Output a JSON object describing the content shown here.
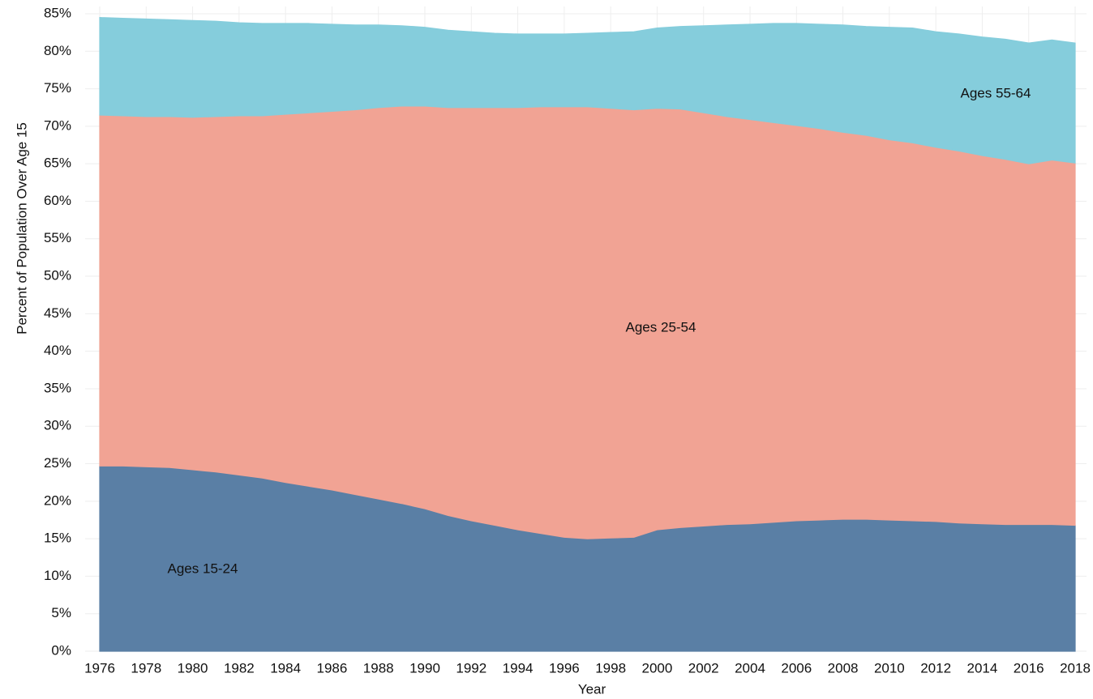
{
  "chart_data": {
    "type": "stacked-area",
    "x_label": "Year",
    "y_label": "Percent of Population Over Age 15",
    "x": [
      1976,
      1977,
      1978,
      1979,
      1980,
      1981,
      1982,
      1983,
      1984,
      1985,
      1986,
      1987,
      1988,
      1989,
      1990,
      1991,
      1992,
      1993,
      1994,
      1995,
      1996,
      1997,
      1998,
      1999,
      2000,
      2001,
      2002,
      2003,
      2004,
      2005,
      2006,
      2007,
      2008,
      2009,
      2010,
      2011,
      2012,
      2013,
      2014,
      2015,
      2016,
      2017,
      2018
    ],
    "series": [
      {
        "name": "Ages 15-24",
        "color": "#5a7fa5",
        "values": [
          24.7,
          24.7,
          24.6,
          24.5,
          24.2,
          23.9,
          23.5,
          23.1,
          22.5,
          22.0,
          21.5,
          20.9,
          20.3,
          19.7,
          19.0,
          18.1,
          17.4,
          16.8,
          16.2,
          15.7,
          15.2,
          15.0,
          15.1,
          15.2,
          16.2,
          16.5,
          16.7,
          16.9,
          17.0,
          17.2,
          17.4,
          17.5,
          17.6,
          17.6,
          17.5,
          17.4,
          17.3,
          17.1,
          17.0,
          16.9,
          16.9,
          16.9,
          16.8
        ]
      },
      {
        "name": "Ages 25-54",
        "color": "#f1a394",
        "values": [
          46.8,
          46.7,
          46.7,
          46.8,
          47.0,
          47.4,
          47.9,
          48.3,
          49.1,
          49.8,
          50.5,
          51.3,
          52.2,
          53.0,
          53.7,
          54.4,
          55.1,
          55.7,
          56.3,
          56.9,
          57.4,
          57.6,
          57.3,
          57.0,
          56.2,
          55.8,
          55.1,
          54.4,
          53.9,
          53.3,
          52.7,
          52.2,
          51.6,
          51.2,
          50.7,
          50.4,
          49.9,
          49.6,
          49.1,
          48.7,
          48.1,
          48.6,
          48.3
        ]
      },
      {
        "name": "Ages 55-64",
        "color": "#85cddc",
        "values": [
          13.0,
          13.0,
          13.0,
          12.9,
          12.9,
          12.7,
          12.4,
          12.3,
          12.1,
          11.9,
          11.6,
          11.3,
          11.0,
          10.7,
          10.5,
          10.3,
          10.1,
          9.9,
          9.8,
          9.7,
          9.7,
          9.8,
          10.1,
          10.4,
          10.7,
          11.0,
          11.6,
          12.2,
          12.7,
          13.2,
          13.6,
          13.9,
          14.3,
          14.5,
          15.0,
          15.3,
          15.4,
          15.6,
          15.8,
          16.0,
          16.1,
          16.0,
          16.0
        ]
      }
    ],
    "xlim": [
      1976,
      2018
    ],
    "xticks": [
      1976,
      1978,
      1980,
      1982,
      1984,
      1986,
      1988,
      1990,
      1992,
      1994,
      1996,
      1998,
      2000,
      2002,
      2004,
      2006,
      2008,
      2010,
      2012,
      2014,
      2016,
      2018
    ],
    "ylim": [
      0,
      85
    ],
    "yticks": [
      {
        "value": 0,
        "label": "0%"
      },
      {
        "value": 5,
        "label": "5%"
      },
      {
        "value": 10,
        "label": "10%"
      },
      {
        "value": 15,
        "label": "15%"
      },
      {
        "value": 20,
        "label": "20%"
      },
      {
        "value": 25,
        "label": "25%"
      },
      {
        "value": 30,
        "label": "30%"
      },
      {
        "value": 35,
        "label": "35%"
      },
      {
        "value": 40,
        "label": "40%"
      },
      {
        "value": 45,
        "label": "45%"
      },
      {
        "value": 50,
        "label": "50%"
      },
      {
        "value": 55,
        "label": "55%"
      },
      {
        "value": 60,
        "label": "60%"
      },
      {
        "value": 65,
        "label": "65%"
      },
      {
        "value": 70,
        "label": "70%"
      },
      {
        "value": 75,
        "label": "75%"
      },
      {
        "value": 80,
        "label": "80%"
      },
      {
        "value": 85,
        "label": "85%"
      }
    ],
    "grid": true
  }
}
